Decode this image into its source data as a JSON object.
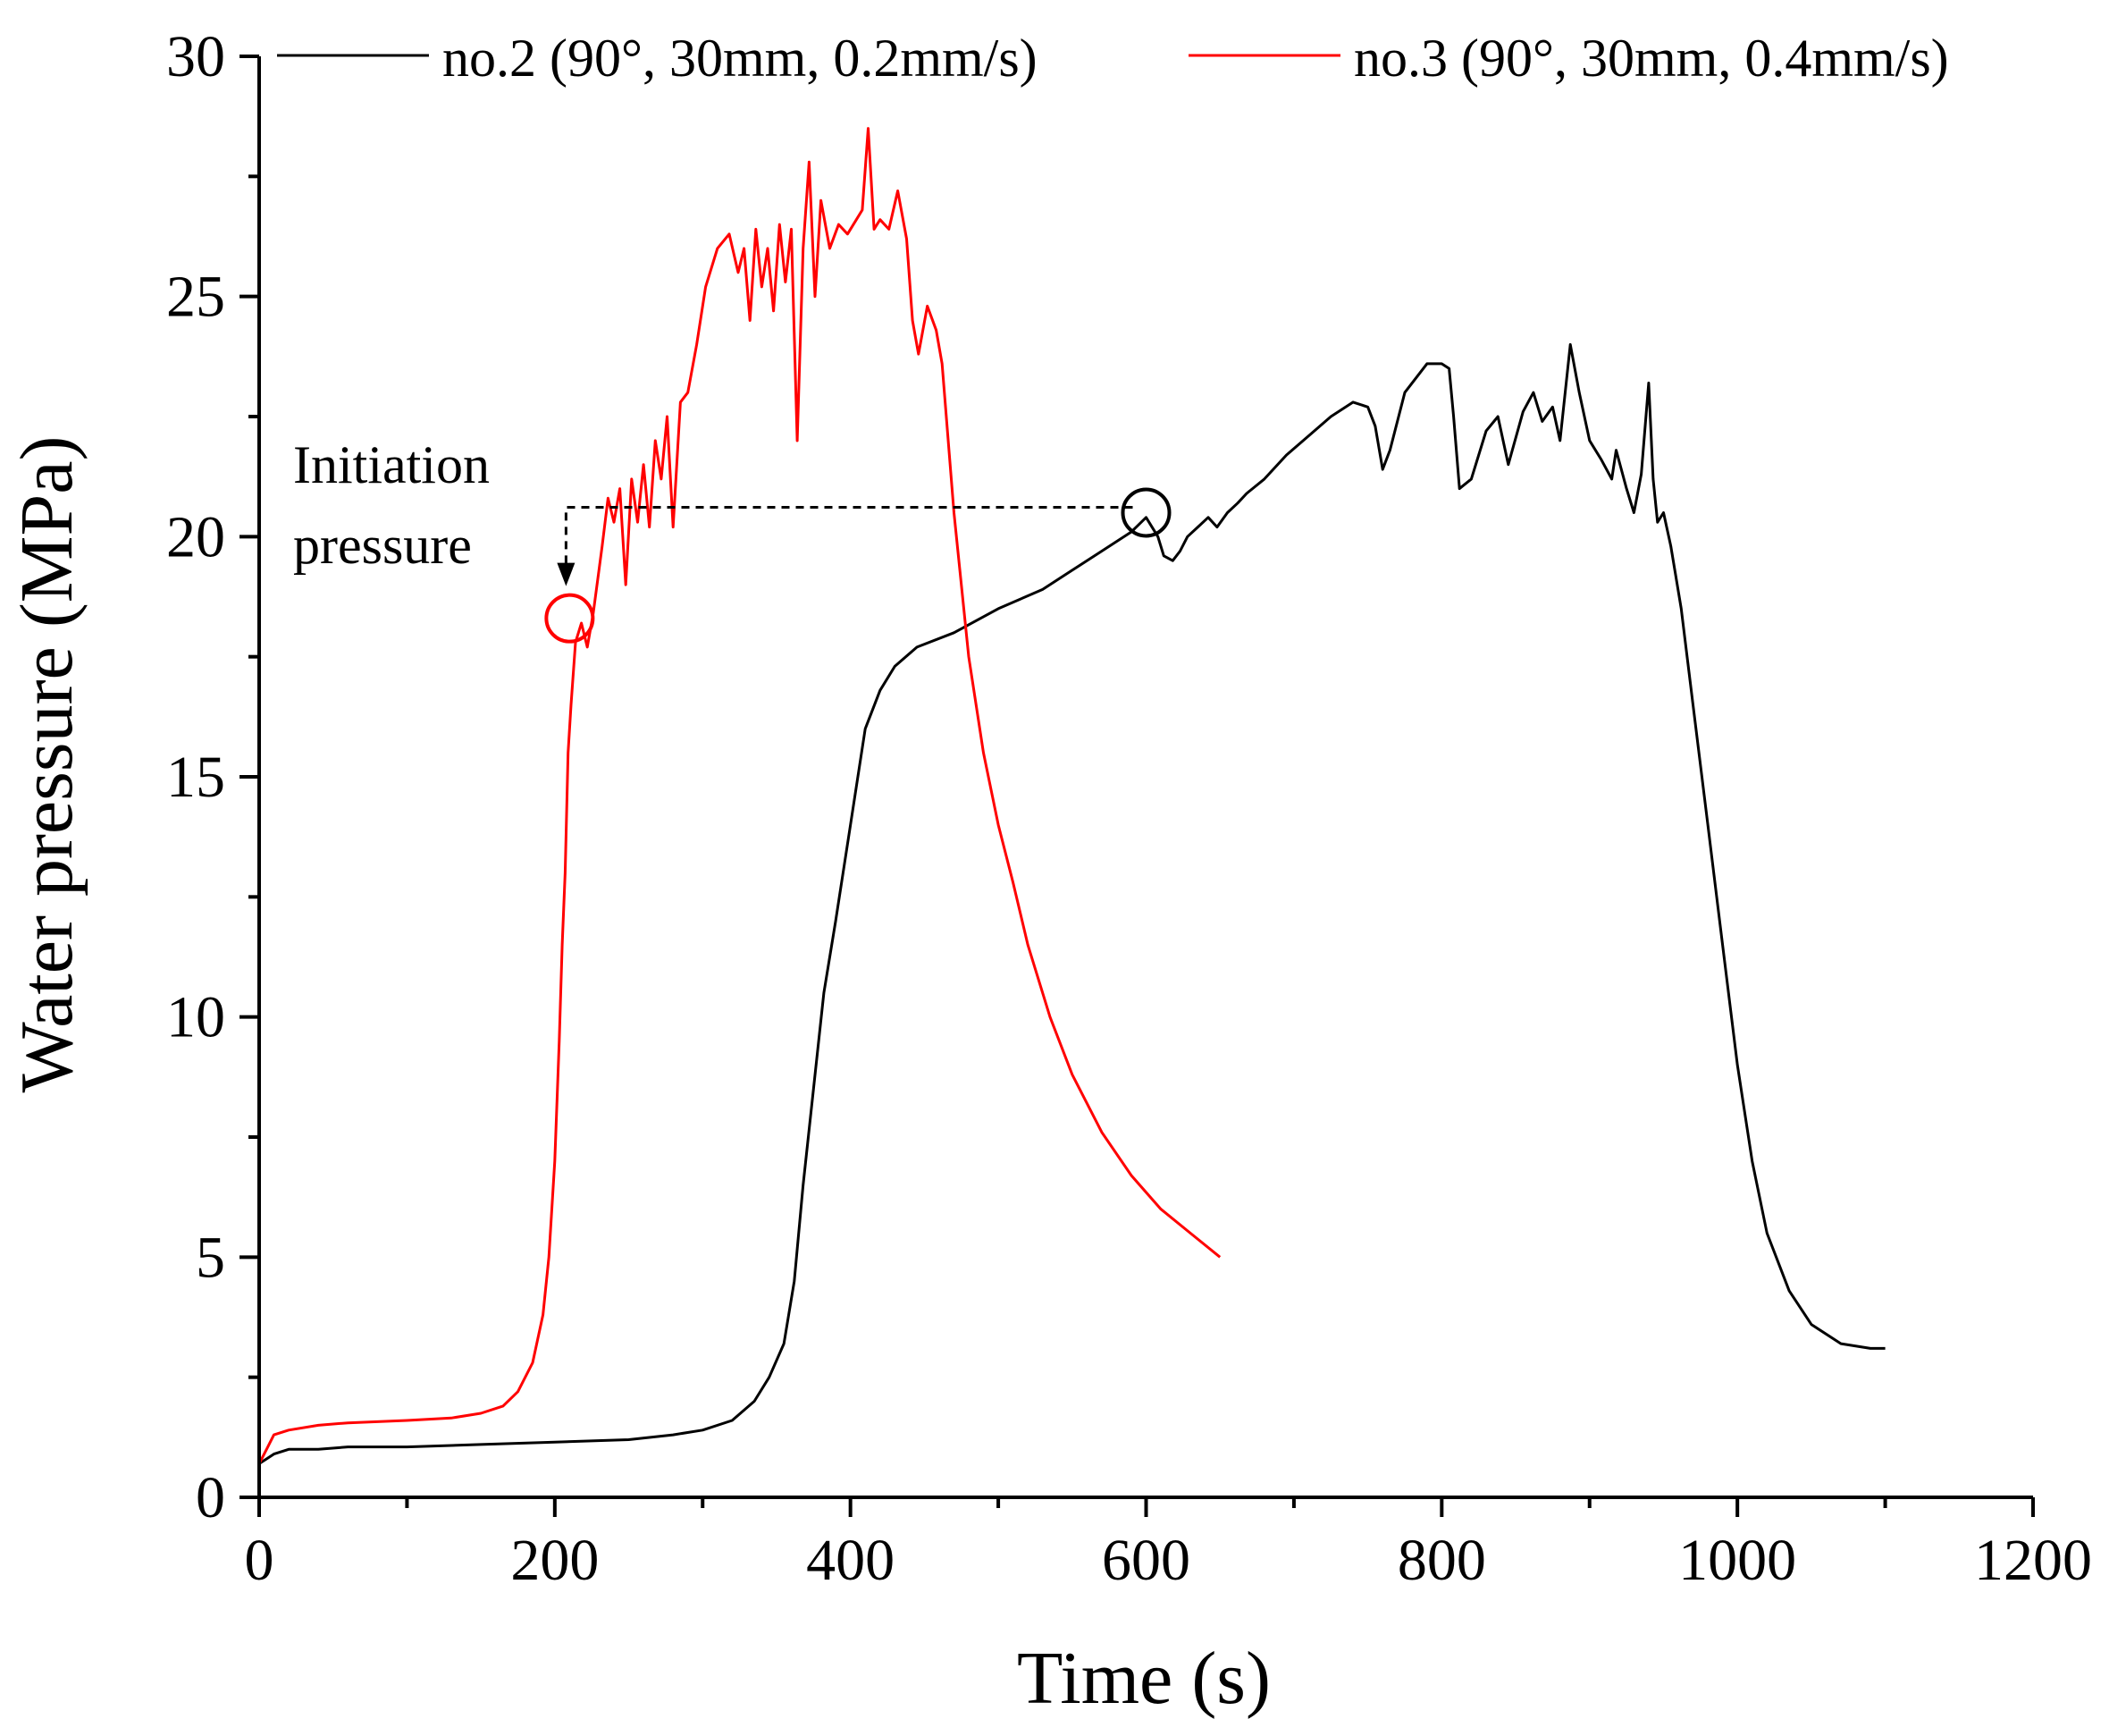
{
  "chart_data": {
    "type": "line",
    "title": "",
    "xlabel": "Time (s)",
    "ylabel": "Water pressure (MPa)",
    "xlim": [
      0,
      1200
    ],
    "ylim": [
      0,
      30
    ],
    "xticks": [
      0,
      200,
      400,
      600,
      800,
      1000,
      1200
    ],
    "yticks": [
      0,
      5,
      10,
      15,
      20,
      25,
      30
    ],
    "grid": false,
    "legend_position": "top",
    "series": [
      {
        "name": "no.2 (90°, 30mm, 0.2mm/s)",
        "color": "#000000",
        "points": [
          [
            0,
            0.7
          ],
          [
            5,
            0.8
          ],
          [
            10,
            0.9
          ],
          [
            20,
            1.0
          ],
          [
            40,
            1.0
          ],
          [
            60,
            1.05
          ],
          [
            100,
            1.05
          ],
          [
            150,
            1.1
          ],
          [
            200,
            1.15
          ],
          [
            250,
            1.2
          ],
          [
            280,
            1.3
          ],
          [
            300,
            1.4
          ],
          [
            320,
            1.6
          ],
          [
            335,
            2.0
          ],
          [
            345,
            2.5
          ],
          [
            355,
            3.2
          ],
          [
            362,
            4.5
          ],
          [
            368,
            6.5
          ],
          [
            375,
            8.5
          ],
          [
            382,
            10.5
          ],
          [
            390,
            12.0
          ],
          [
            400,
            14.0
          ],
          [
            410,
            16.0
          ],
          [
            420,
            16.8
          ],
          [
            430,
            17.3
          ],
          [
            445,
            17.7
          ],
          [
            470,
            18.0
          ],
          [
            500,
            18.5
          ],
          [
            530,
            18.9
          ],
          [
            550,
            19.3
          ],
          [
            570,
            19.7
          ],
          [
            590,
            20.1
          ],
          [
            600,
            20.4
          ],
          [
            608,
            20.0
          ],
          [
            612,
            19.6
          ],
          [
            618,
            19.5
          ],
          [
            623,
            19.7
          ],
          [
            628,
            20.0
          ],
          [
            635,
            20.2
          ],
          [
            642,
            20.4
          ],
          [
            648,
            20.2
          ],
          [
            655,
            20.5
          ],
          [
            662,
            20.7
          ],
          [
            668,
            20.9
          ],
          [
            680,
            21.2
          ],
          [
            695,
            21.7
          ],
          [
            710,
            22.1
          ],
          [
            725,
            22.5
          ],
          [
            740,
            22.8
          ],
          [
            750,
            22.7
          ],
          [
            755,
            22.3
          ],
          [
            760,
            21.4
          ],
          [
            765,
            21.8
          ],
          [
            775,
            23.0
          ],
          [
            790,
            23.6
          ],
          [
            800,
            23.6
          ],
          [
            805,
            23.5
          ],
          [
            808,
            22.5
          ],
          [
            812,
            21.0
          ],
          [
            820,
            21.2
          ],
          [
            830,
            22.2
          ],
          [
            838,
            22.5
          ],
          [
            845,
            21.5
          ],
          [
            855,
            22.6
          ],
          [
            862,
            23.0
          ],
          [
            868,
            22.4
          ],
          [
            875,
            22.7
          ],
          [
            880,
            22.0
          ],
          [
            887,
            24.0
          ],
          [
            893,
            23.0
          ],
          [
            900,
            22.0
          ],
          [
            908,
            21.6
          ],
          [
            915,
            21.2
          ],
          [
            918,
            21.8
          ],
          [
            925,
            21.0
          ],
          [
            930,
            20.5
          ],
          [
            935,
            21.3
          ],
          [
            940,
            23.2
          ],
          [
            943,
            21.2
          ],
          [
            946,
            20.3
          ],
          [
            950,
            20.5
          ],
          [
            955,
            19.8
          ],
          [
            962,
            18.5
          ],
          [
            970,
            16.5
          ],
          [
            980,
            14.0
          ],
          [
            990,
            11.5
          ],
          [
            1000,
            9.0
          ],
          [
            1010,
            7.0
          ],
          [
            1020,
            5.5
          ],
          [
            1035,
            4.3
          ],
          [
            1050,
            3.6
          ],
          [
            1070,
            3.2
          ],
          [
            1090,
            3.1
          ],
          [
            1100,
            3.1
          ]
        ]
      },
      {
        "name": "no.3 (90°, 30mm, 0.4mm/s)",
        "color": "#ff0000",
        "points": [
          [
            0,
            0.7
          ],
          [
            5,
            1.0
          ],
          [
            10,
            1.3
          ],
          [
            20,
            1.4
          ],
          [
            40,
            1.5
          ],
          [
            60,
            1.55
          ],
          [
            100,
            1.6
          ],
          [
            130,
            1.65
          ],
          [
            150,
            1.75
          ],
          [
            165,
            1.9
          ],
          [
            175,
            2.2
          ],
          [
            185,
            2.8
          ],
          [
            192,
            3.8
          ],
          [
            196,
            5.0
          ],
          [
            200,
            7.0
          ],
          [
            203,
            9.5
          ],
          [
            205,
            11.5
          ],
          [
            207,
            13.0
          ],
          [
            209,
            15.5
          ],
          [
            211,
            16.5
          ],
          [
            214,
            17.8
          ],
          [
            218,
            18.2
          ],
          [
            222,
            17.7
          ],
          [
            226,
            18.4
          ],
          [
            232,
            19.8
          ],
          [
            236,
            20.8
          ],
          [
            240,
            20.3
          ],
          [
            244,
            21.0
          ],
          [
            248,
            19.0
          ],
          [
            252,
            21.2
          ],
          [
            256,
            20.3
          ],
          [
            260,
            21.5
          ],
          [
            264,
            20.2
          ],
          [
            268,
            22.0
          ],
          [
            272,
            21.2
          ],
          [
            276,
            22.5
          ],
          [
            280,
            20.2
          ],
          [
            285,
            22.8
          ],
          [
            290,
            23.0
          ],
          [
            296,
            24.0
          ],
          [
            302,
            25.2
          ],
          [
            310,
            26.0
          ],
          [
            318,
            26.3
          ],
          [
            324,
            25.5
          ],
          [
            328,
            26.0
          ],
          [
            332,
            24.5
          ],
          [
            336,
            26.4
          ],
          [
            340,
            25.2
          ],
          [
            344,
            26.0
          ],
          [
            348,
            24.7
          ],
          [
            352,
            26.5
          ],
          [
            356,
            25.3
          ],
          [
            360,
            26.4
          ],
          [
            364,
            22.0
          ],
          [
            368,
            26.0
          ],
          [
            372,
            27.8
          ],
          [
            376,
            25.0
          ],
          [
            380,
            27.0
          ],
          [
            386,
            26.0
          ],
          [
            392,
            26.5
          ],
          [
            398,
            26.3
          ],
          [
            404,
            26.6
          ],
          [
            408,
            26.8
          ],
          [
            412,
            28.5
          ],
          [
            416,
            26.4
          ],
          [
            420,
            26.6
          ],
          [
            426,
            26.4
          ],
          [
            432,
            27.2
          ],
          [
            438,
            26.2
          ],
          [
            442,
            24.5
          ],
          [
            446,
            23.8
          ],
          [
            452,
            24.8
          ],
          [
            458,
            24.3
          ],
          [
            462,
            23.6
          ],
          [
            470,
            20.5
          ],
          [
            480,
            17.5
          ],
          [
            490,
            15.5
          ],
          [
            500,
            14.0
          ],
          [
            510,
            12.8
          ],
          [
            520,
            11.5
          ],
          [
            535,
            10.0
          ],
          [
            550,
            8.8
          ],
          [
            570,
            7.6
          ],
          [
            590,
            6.7
          ],
          [
            610,
            6.0
          ],
          [
            630,
            5.5
          ],
          [
            650,
            5.0
          ]
        ]
      }
    ],
    "annotations": [
      {
        "text_line1": "Initiation",
        "text_line2": "pressure"
      },
      {
        "marker": "circle",
        "series": "no.2 (90°, 30mm, 0.2mm/s)",
        "x": 600,
        "y": 20.5
      },
      {
        "marker": "circle",
        "series": "no.3 (90°, 30mm, 0.4mm/s)",
        "x": 210,
        "y": 18.3
      }
    ]
  }
}
